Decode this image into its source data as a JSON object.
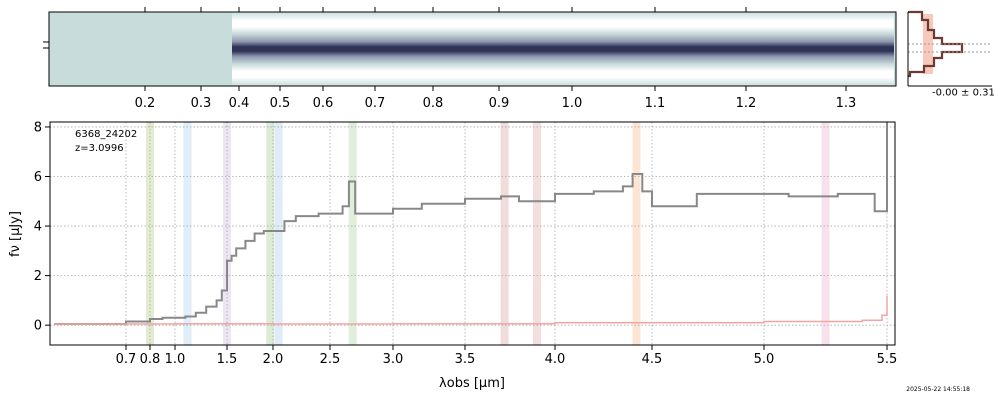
{
  "chart_data": [
    {
      "type": "heatmap",
      "panel": "2d-spectrum",
      "top_axis_tick_labels": [
        "0.2",
        "0.3",
        "0.4",
        "0.5",
        "0.6",
        "0.7",
        "0.8",
        "0.9",
        "1.0",
        "1.1",
        "1.2",
        "1.3"
      ],
      "colormap": [
        "#c7dcdc",
        "#2f3355"
      ]
    },
    {
      "type": "line",
      "panel": "profile",
      "annotation": "-0.00 ± 0.31",
      "colors": {
        "profile": "#6b3b33",
        "fill": "#f7c9bb"
      }
    },
    {
      "type": "line",
      "panel": "1d-spectrum",
      "xlabel": "λobs [μm]",
      "ylabel": "fν [μJy]",
      "ylim": [
        -0.8,
        8.2
      ],
      "yticks": [
        0,
        2,
        4,
        6,
        8
      ],
      "xtick_labels": [
        "0.7",
        "0.8",
        "1.0",
        "1.5",
        "2.0",
        "2.5",
        "3.0",
        "3.5",
        "4.0",
        "4.5",
        "5.0",
        "5.5"
      ],
      "xticks": [
        0.7,
        0.8,
        1.0,
        1.5,
        2.0,
        2.5,
        3.0,
        3.5,
        4.0,
        4.5,
        5.0,
        5.5
      ],
      "grid": true,
      "annotation_lines": [
        "6368_24202",
        "z=3.0996"
      ],
      "series": [
        {
          "color": "#888888",
          "x": [
            0.55,
            0.7,
            0.8,
            0.9,
            1.0,
            1.1,
            1.2,
            1.3,
            1.4,
            1.45,
            1.5,
            1.55,
            1.6,
            1.7,
            1.8,
            1.9,
            2.0,
            2.1,
            2.2,
            2.4,
            2.6,
            2.65,
            2.7,
            2.8,
            3.0,
            3.2,
            3.5,
            3.7,
            3.8,
            4.0,
            4.2,
            4.35,
            4.4,
            4.45,
            4.5,
            4.7,
            4.9,
            5.1,
            5.3,
            5.4,
            5.45,
            5.5
          ],
          "y": [
            0.05,
            0.15,
            0.25,
            0.3,
            0.3,
            0.35,
            0.5,
            0.75,
            1.0,
            1.4,
            2.6,
            2.8,
            3.1,
            3.4,
            3.7,
            3.8,
            3.8,
            4.2,
            4.4,
            4.5,
            4.8,
            5.8,
            4.5,
            4.5,
            4.7,
            4.9,
            5.1,
            5.2,
            5.0,
            5.3,
            5.4,
            5.6,
            6.1,
            5.4,
            4.8,
            5.3,
            5.3,
            5.2,
            5.3,
            5.3,
            4.6,
            8.2
          ]
        },
        {
          "color": "#f4a5a1",
          "x": [
            0.55,
            1.0,
            2.0,
            3.0,
            4.0,
            5.0,
            5.4,
            5.48,
            5.5
          ],
          "y": [
            0.05,
            0.06,
            0.05,
            0.06,
            0.1,
            0.15,
            0.2,
            0.4,
            1.2
          ]
        }
      ],
      "emission_bands": [
        {
          "x": 0.8,
          "color": "#d9e6c0"
        },
        {
          "x": 1.12,
          "color": "#d6e8f7"
        },
        {
          "x": 1.5,
          "color": "#e5dcf0"
        },
        {
          "x": 1.97,
          "color": "#cfe6c7"
        },
        {
          "x": 2.05,
          "color": "#d4e6f4"
        },
        {
          "x": 2.68,
          "color": "#d4ebcd"
        },
        {
          "x": 3.72,
          "color": "#ecd0d0"
        },
        {
          "x": 3.9,
          "color": "#f0d4d4"
        },
        {
          "x": 4.42,
          "color": "#fbdcc7"
        },
        {
          "x": 5.25,
          "color": "#f5d7e6"
        }
      ]
    }
  ],
  "timestamp": "2025-05-22 14:55:18"
}
